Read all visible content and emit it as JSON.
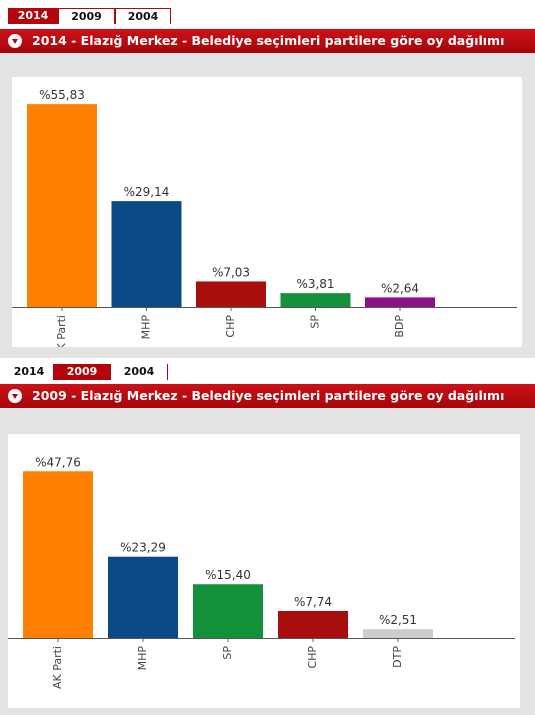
{
  "tabs": [
    "2014",
    "2009",
    "2004"
  ],
  "panels": [
    {
      "active_tab": "2014",
      "title": "2014 - Elazığ Merkez - Belediye seçimleri partilere göre oy dağılımı"
    },
    {
      "active_tab": "2009",
      "title": "2009 - Elazığ Merkez - Belediye seçimleri partilere göre oy dağılımı"
    }
  ],
  "chart_data": [
    {
      "type": "bar",
      "categories": [
        "AK Parti",
        "MHP",
        "CHP",
        "SP",
        "BDP"
      ],
      "values": [
        55.83,
        29.14,
        7.03,
        3.81,
        2.64
      ],
      "value_labels": [
        "%55,83",
        "%29,14",
        "%7,03",
        "%3,81",
        "%2,64"
      ],
      "colors": [
        "#ff7f00",
        "#0c4a86",
        "#a90f0f",
        "#14913b",
        "#8c1189"
      ],
      "ylim": [
        0,
        60
      ],
      "grid": false
    },
    {
      "type": "bar",
      "categories": [
        "AK Parti",
        "MHP",
        "SP",
        "CHP",
        "DTP"
      ],
      "values": [
        47.76,
        23.29,
        15.4,
        7.74,
        2.51
      ],
      "value_labels": [
        "%47,76",
        "%23,29",
        "%15,40",
        "%7,74",
        "%2,51"
      ],
      "colors": [
        "#ff7f00",
        "#0c4a86",
        "#14913b",
        "#a90f0f",
        "#cccccc"
      ],
      "ylim": [
        0,
        55
      ],
      "grid": false
    }
  ]
}
